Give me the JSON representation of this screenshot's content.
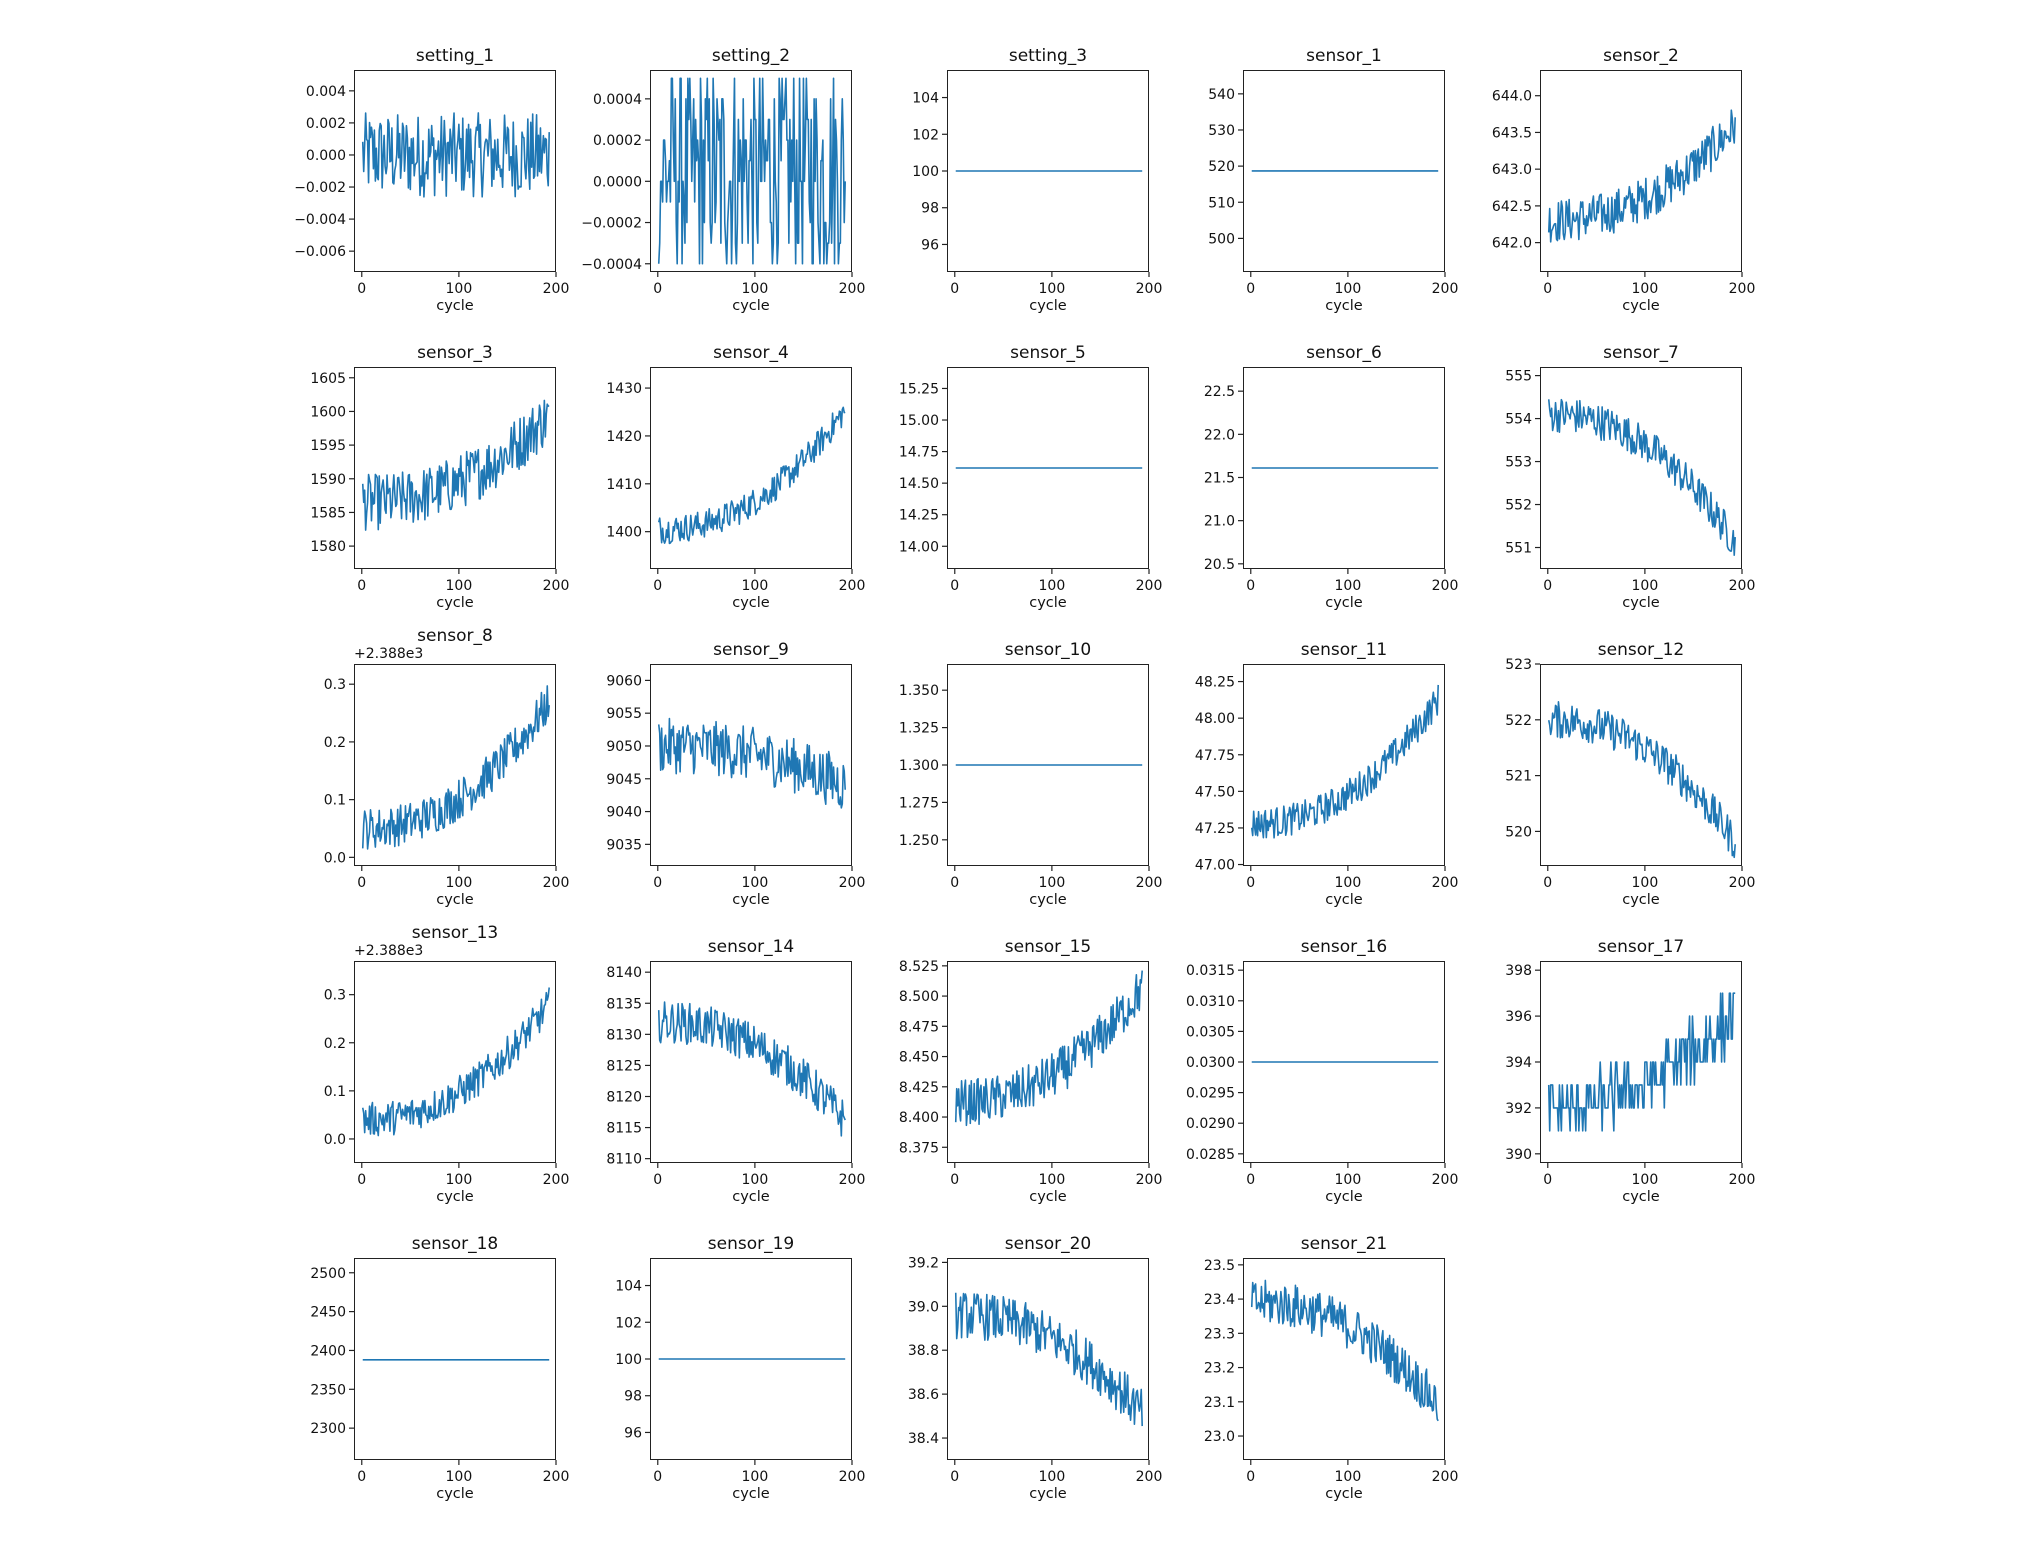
{
  "figure": {
    "xlabel": "cycle",
    "line_color": "#1f77b4"
  },
  "chart_data": [
    {
      "type": "line",
      "title": "setting_1",
      "xlabel": "cycle",
      "ylabel": "",
      "xlim": [
        -8,
        200
      ],
      "ylim": [
        -0.0073,
        0.0053
      ],
      "xticks": [
        0,
        100,
        200
      ],
      "yticks": [
        -0.006,
        -0.004,
        -0.002,
        0.0,
        0.002,
        0.004
      ],
      "ytick_labels": [
        "−0.006",
        "−0.004",
        "−0.002",
        "0.000",
        "0.002",
        "0.004"
      ],
      "offset": "",
      "pattern": "noise",
      "base": 0.0,
      "amp": 0.0022,
      "trend": 0.0,
      "range": [
        -0.0067,
        0.0047
      ]
    },
    {
      "type": "line",
      "title": "setting_2",
      "xlabel": "cycle",
      "ylabel": "",
      "xlim": [
        -8,
        200
      ],
      "ylim": [
        -0.00044,
        0.00054
      ],
      "xticks": [
        0,
        100,
        200
      ],
      "yticks": [
        -0.0004,
        -0.0002,
        0.0,
        0.0002,
        0.0004
      ],
      "ytick_labels": [
        "−0.0004",
        "−0.0002",
        "0.0000",
        "0.0002",
        "0.0004"
      ],
      "offset": "",
      "pattern": "discrete",
      "levels": [
        -0.0004,
        -0.0003,
        -0.0002,
        -0.0001,
        0.0,
        0.0001,
        0.0002,
        0.0003,
        0.0004,
        0.0005
      ],
      "range": [
        -0.0004,
        0.0005
      ]
    },
    {
      "type": "line",
      "title": "setting_3",
      "xlabel": "cycle",
      "ylabel": "",
      "xlim": [
        -8,
        200
      ],
      "ylim": [
        94.5,
        105.5
      ],
      "xticks": [
        0,
        100,
        200
      ],
      "yticks": [
        96,
        98,
        100,
        102,
        104
      ],
      "ytick_labels": [
        "96",
        "98",
        "100",
        "102",
        "104"
      ],
      "offset": "",
      "pattern": "constant",
      "base": 100.0
    },
    {
      "type": "line",
      "title": "sensor_1",
      "xlabel": "cycle",
      "ylabel": "",
      "xlim": [
        -8,
        200
      ],
      "ylim": [
        490.7,
        546.6
      ],
      "xticks": [
        0,
        100,
        200
      ],
      "yticks": [
        500,
        510,
        520,
        530,
        540
      ],
      "ytick_labels": [
        "500",
        "510",
        "520",
        "530",
        "540"
      ],
      "offset": "",
      "pattern": "constant",
      "base": 518.67
    },
    {
      "type": "line",
      "title": "sensor_2",
      "xlabel": "cycle",
      "ylabel": "",
      "xlim": [
        -8,
        200
      ],
      "ylim": [
        641.6,
        644.35
      ],
      "xticks": [
        0,
        100,
        200
      ],
      "yticks": [
        642.0,
        642.5,
        643.0,
        643.5,
        644.0
      ],
      "ytick_labels": [
        "642.0",
        "642.5",
        "643.0",
        "643.5",
        "644.0"
      ],
      "offset": "",
      "pattern": "noise",
      "base": 642.3,
      "amp": 0.25,
      "trend": 1.3,
      "range": [
        641.7,
        644.2
      ]
    },
    {
      "type": "line",
      "title": "sensor_3",
      "xlabel": "cycle",
      "ylabel": "",
      "xlim": [
        -8,
        200
      ],
      "ylim": [
        1576.6,
        1606.6
      ],
      "xticks": [
        0,
        100,
        200
      ],
      "yticks": [
        1580,
        1585,
        1590,
        1595,
        1600,
        1605
      ],
      "ytick_labels": [
        "1580",
        "1585",
        "1590",
        "1595",
        "1600",
        "1605"
      ],
      "offset": "",
      "pattern": "noise",
      "base": 1586.5,
      "amp": 3.5,
      "trend": 13,
      "range": [
        1577.5,
        1605.5
      ]
    },
    {
      "type": "line",
      "title": "sensor_4",
      "xlabel": "cycle",
      "ylabel": "",
      "xlim": [
        -8,
        200
      ],
      "ylim": [
        1392.2,
        1434.4
      ],
      "xticks": [
        0,
        100,
        200
      ],
      "yticks": [
        1400,
        1410,
        1420,
        1430
      ],
      "ytick_labels": [
        "1400",
        "1410",
        "1420",
        "1430"
      ],
      "offset": "",
      "pattern": "noise",
      "base": 1400.5,
      "amp": 2.5,
      "trend": 25,
      "range": [
        1393.5,
        1432.5
      ]
    },
    {
      "type": "line",
      "title": "sensor_5",
      "xlabel": "cycle",
      "ylabel": "",
      "xlim": [
        -8,
        200
      ],
      "ylim": [
        13.82,
        15.42
      ],
      "xticks": [
        0,
        100,
        200
      ],
      "yticks": [
        14.0,
        14.25,
        14.5,
        14.75,
        15.0,
        15.25
      ],
      "ytick_labels": [
        "14.00",
        "14.25",
        "14.50",
        "14.75",
        "15.00",
        "15.25"
      ],
      "offset": "",
      "pattern": "constant",
      "base": 14.62
    },
    {
      "type": "line",
      "title": "sensor_6",
      "xlabel": "cycle",
      "ylabel": "",
      "xlim": [
        -8,
        200
      ],
      "ylim": [
        20.44,
        22.78
      ],
      "xticks": [
        0,
        100,
        200
      ],
      "yticks": [
        20.5,
        21.0,
        21.5,
        22.0,
        22.5
      ],
      "ytick_labels": [
        "20.5",
        "21.0",
        "21.5",
        "22.0",
        "22.5"
      ],
      "offset": "",
      "pattern": "constant",
      "base": 21.61
    },
    {
      "type": "line",
      "title": "sensor_7",
      "xlabel": "cycle",
      "ylabel": "",
      "xlim": [
        -8,
        200
      ],
      "ylim": [
        550.5,
        555.2
      ],
      "xticks": [
        0,
        100,
        200
      ],
      "yticks": [
        551,
        552,
        553,
        554,
        555
      ],
      "ytick_labels": [
        "551",
        "552",
        "553",
        "554",
        "555"
      ],
      "offset": "",
      "pattern": "noise",
      "base": 554.1,
      "amp": 0.35,
      "trend": -3.0,
      "range": [
        550.7,
        555.0
      ]
    },
    {
      "type": "line",
      "title": "sensor_8",
      "xlabel": "cycle",
      "ylabel": "",
      "xlim": [
        -8,
        200
      ],
      "ylim": [
        -0.015,
        0.335
      ],
      "xticks": [
        0,
        100,
        200
      ],
      "yticks": [
        0.0,
        0.1,
        0.2,
        0.3
      ],
      "ytick_labels": [
        "0.0",
        "0.1",
        "0.2",
        "0.3"
      ],
      "offset": "+2.388e3",
      "pattern": "noise",
      "base": 0.05,
      "amp": 0.03,
      "trend": 0.22,
      "range": [
        0.0,
        0.32
      ]
    },
    {
      "type": "line",
      "title": "sensor_9",
      "xlabel": "cycle",
      "ylabel": "",
      "xlim": [
        -8,
        200
      ],
      "ylim": [
        9031.7,
        9062.5
      ],
      "xticks": [
        0,
        100,
        200
      ],
      "yticks": [
        9035,
        9040,
        9045,
        9050,
        9055,
        9060
      ],
      "ytick_labels": [
        "9035",
        "9040",
        "9045",
        "9050",
        "9055",
        "9060"
      ],
      "offset": "",
      "pattern": "noise",
      "base": 9050,
      "amp": 3.5,
      "trend": -6,
      "range": [
        9033,
        9061
      ]
    },
    {
      "type": "line",
      "title": "sensor_10",
      "xlabel": "cycle",
      "ylabel": "",
      "xlim": [
        -8,
        200
      ],
      "ylim": [
        1.2325,
        1.3675
      ],
      "xticks": [
        0,
        100,
        200
      ],
      "yticks": [
        1.25,
        1.275,
        1.3,
        1.325,
        1.35
      ],
      "ytick_labels": [
        "1.250",
        "1.275",
        "1.300",
        "1.325",
        "1.350"
      ],
      "offset": "",
      "pattern": "constant",
      "base": 1.3
    },
    {
      "type": "line",
      "title": "sensor_11",
      "xlabel": "cycle",
      "ylabel": "",
      "xlim": [
        -8,
        200
      ],
      "ylim": [
        46.99,
        48.37
      ],
      "xticks": [
        0,
        100,
        200
      ],
      "yticks": [
        47.0,
        47.25,
        47.5,
        47.75,
        48.0,
        48.25
      ],
      "ytick_labels": [
        "47.00",
        "47.25",
        "47.50",
        "47.75",
        "48.00",
        "48.25"
      ],
      "offset": "",
      "pattern": "noise",
      "base": 47.28,
      "amp": 0.09,
      "trend": 0.85,
      "range": [
        47.03,
        48.33
      ]
    },
    {
      "type": "line",
      "title": "sensor_12",
      "xlabel": "cycle",
      "ylabel": "",
      "xlim": [
        -8,
        200
      ],
      "ylim": [
        519.38,
        523.0
      ],
      "xticks": [
        0,
        100,
        200
      ],
      "yticks": [
        520,
        521,
        522,
        523
      ],
      "ytick_labels": [
        "520",
        "521",
        "522",
        "523"
      ],
      "offset": "",
      "pattern": "noise",
      "base": 522.0,
      "amp": 0.28,
      "trend": -2.2,
      "range": [
        519.5,
        522.85
      ]
    },
    {
      "type": "line",
      "title": "sensor_13",
      "xlabel": "cycle",
      "ylabel": "",
      "xlim": [
        -8,
        200
      ],
      "ylim": [
        -0.05,
        0.37
      ],
      "xticks": [
        0,
        100,
        200
      ],
      "yticks": [
        0.0,
        0.1,
        0.2,
        0.3
      ],
      "ytick_labels": [
        "0.0",
        "0.1",
        "0.2",
        "0.3"
      ],
      "offset": "+2.388e3",
      "pattern": "noise",
      "base": 0.04,
      "amp": 0.03,
      "trend": 0.24,
      "range": [
        -0.03,
        0.35
      ]
    },
    {
      "type": "line",
      "title": "sensor_14",
      "xlabel": "cycle",
      "ylabel": "",
      "xlim": [
        -8,
        200
      ],
      "ylim": [
        8109.3,
        8141.8
      ],
      "xticks": [
        0,
        100,
        200
      ],
      "yticks": [
        8110,
        8115,
        8120,
        8125,
        8130,
        8135,
        8140
      ],
      "ytick_labels": [
        "8110",
        "8115",
        "8120",
        "8125",
        "8130",
        "8135",
        "8140"
      ],
      "offset": "",
      "pattern": "noise",
      "base": 8132,
      "amp": 2.8,
      "trend": -16,
      "range": [
        8111,
        8140.5
      ]
    },
    {
      "type": "line",
      "title": "sensor_15",
      "xlabel": "cycle",
      "ylabel": "",
      "xlim": [
        -8,
        200
      ],
      "ylim": [
        8.362,
        8.529
      ],
      "xticks": [
        0,
        100,
        200
      ],
      "yticks": [
        8.375,
        8.4,
        8.425,
        8.45,
        8.475,
        8.5,
        8.525
      ],
      "ytick_labels": [
        "8.375",
        "8.400",
        "8.425",
        "8.450",
        "8.475",
        "8.500",
        "8.525"
      ],
      "offset": "",
      "pattern": "noise",
      "base": 8.412,
      "amp": 0.016,
      "trend": 0.095,
      "range": [
        8.368,
        8.522
      ]
    },
    {
      "type": "line",
      "title": "sensor_16",
      "xlabel": "cycle",
      "ylabel": "",
      "xlim": [
        -8,
        200
      ],
      "ylim": [
        0.02835,
        0.03165
      ],
      "xticks": [
        0,
        100,
        200
      ],
      "yticks": [
        0.0285,
        0.029,
        0.0295,
        0.03,
        0.0305,
        0.031,
        0.0315
      ],
      "ytick_labels": [
        "0.0285",
        "0.0290",
        "0.0295",
        "0.0300",
        "0.0305",
        "0.0310",
        "0.0315"
      ],
      "offset": "",
      "pattern": "constant",
      "base": 0.03
    },
    {
      "type": "line",
      "title": "sensor_17",
      "xlabel": "cycle",
      "ylabel": "",
      "xlim": [
        -8,
        200
      ],
      "ylim": [
        389.6,
        398.4
      ],
      "xticks": [
        0,
        100,
        200
      ],
      "yticks": [
        390,
        392,
        394,
        396,
        398
      ],
      "ytick_labels": [
        "390",
        "392",
        "394",
        "396",
        "398"
      ],
      "offset": "",
      "pattern": "integer",
      "base": 392,
      "amp": 1.0,
      "trend": 4,
      "range": [
        390,
        398
      ]
    },
    {
      "type": "line",
      "title": "sensor_18",
      "xlabel": "cycle",
      "ylabel": "",
      "xlim": [
        -8,
        200
      ],
      "ylim": [
        2259,
        2519
      ],
      "xticks": [
        0,
        100,
        200
      ],
      "yticks": [
        2300,
        2350,
        2400,
        2450,
        2500
      ],
      "ytick_labels": [
        "2300",
        "2350",
        "2400",
        "2450",
        "2500"
      ],
      "offset": "",
      "pattern": "constant",
      "base": 2388
    },
    {
      "type": "line",
      "title": "sensor_19",
      "xlabel": "cycle",
      "ylabel": "",
      "xlim": [
        -8,
        200
      ],
      "ylim": [
        94.5,
        105.5
      ],
      "xticks": [
        0,
        100,
        200
      ],
      "yticks": [
        96,
        98,
        100,
        102,
        104
      ],
      "ytick_labels": [
        "96",
        "98",
        "100",
        "102",
        "104"
      ],
      "offset": "",
      "pattern": "constant",
      "base": 100.0
    },
    {
      "type": "line",
      "title": "sensor_20",
      "xlabel": "cycle",
      "ylabel": "",
      "xlim": [
        -8,
        200
      ],
      "ylim": [
        38.3,
        39.22
      ],
      "xticks": [
        0,
        100,
        200
      ],
      "yticks": [
        38.4,
        38.6,
        38.8,
        39.0,
        39.2
      ],
      "ytick_labels": [
        "38.4",
        "38.6",
        "38.8",
        "39.0",
        "39.2"
      ],
      "offset": "",
      "pattern": "noise",
      "base": 38.96,
      "amp": 0.09,
      "trend": -0.45,
      "range": [
        38.34,
        39.18
      ]
    },
    {
      "type": "line",
      "title": "sensor_21",
      "xlabel": "cycle",
      "ylabel": "",
      "xlim": [
        -8,
        200
      ],
      "ylim": [
        22.93,
        23.52
      ],
      "xticks": [
        0,
        100,
        200
      ],
      "yticks": [
        23.0,
        23.1,
        23.2,
        23.3,
        23.4,
        23.5
      ],
      "ytick_labels": [
        "23.0",
        "23.1",
        "23.2",
        "23.3",
        "23.4",
        "23.5"
      ],
      "offset": "",
      "pattern": "noise",
      "base": 23.39,
      "amp": 0.055,
      "trend": -0.3,
      "range": [
        22.96,
        23.5
      ]
    }
  ],
  "series_length": 193
}
